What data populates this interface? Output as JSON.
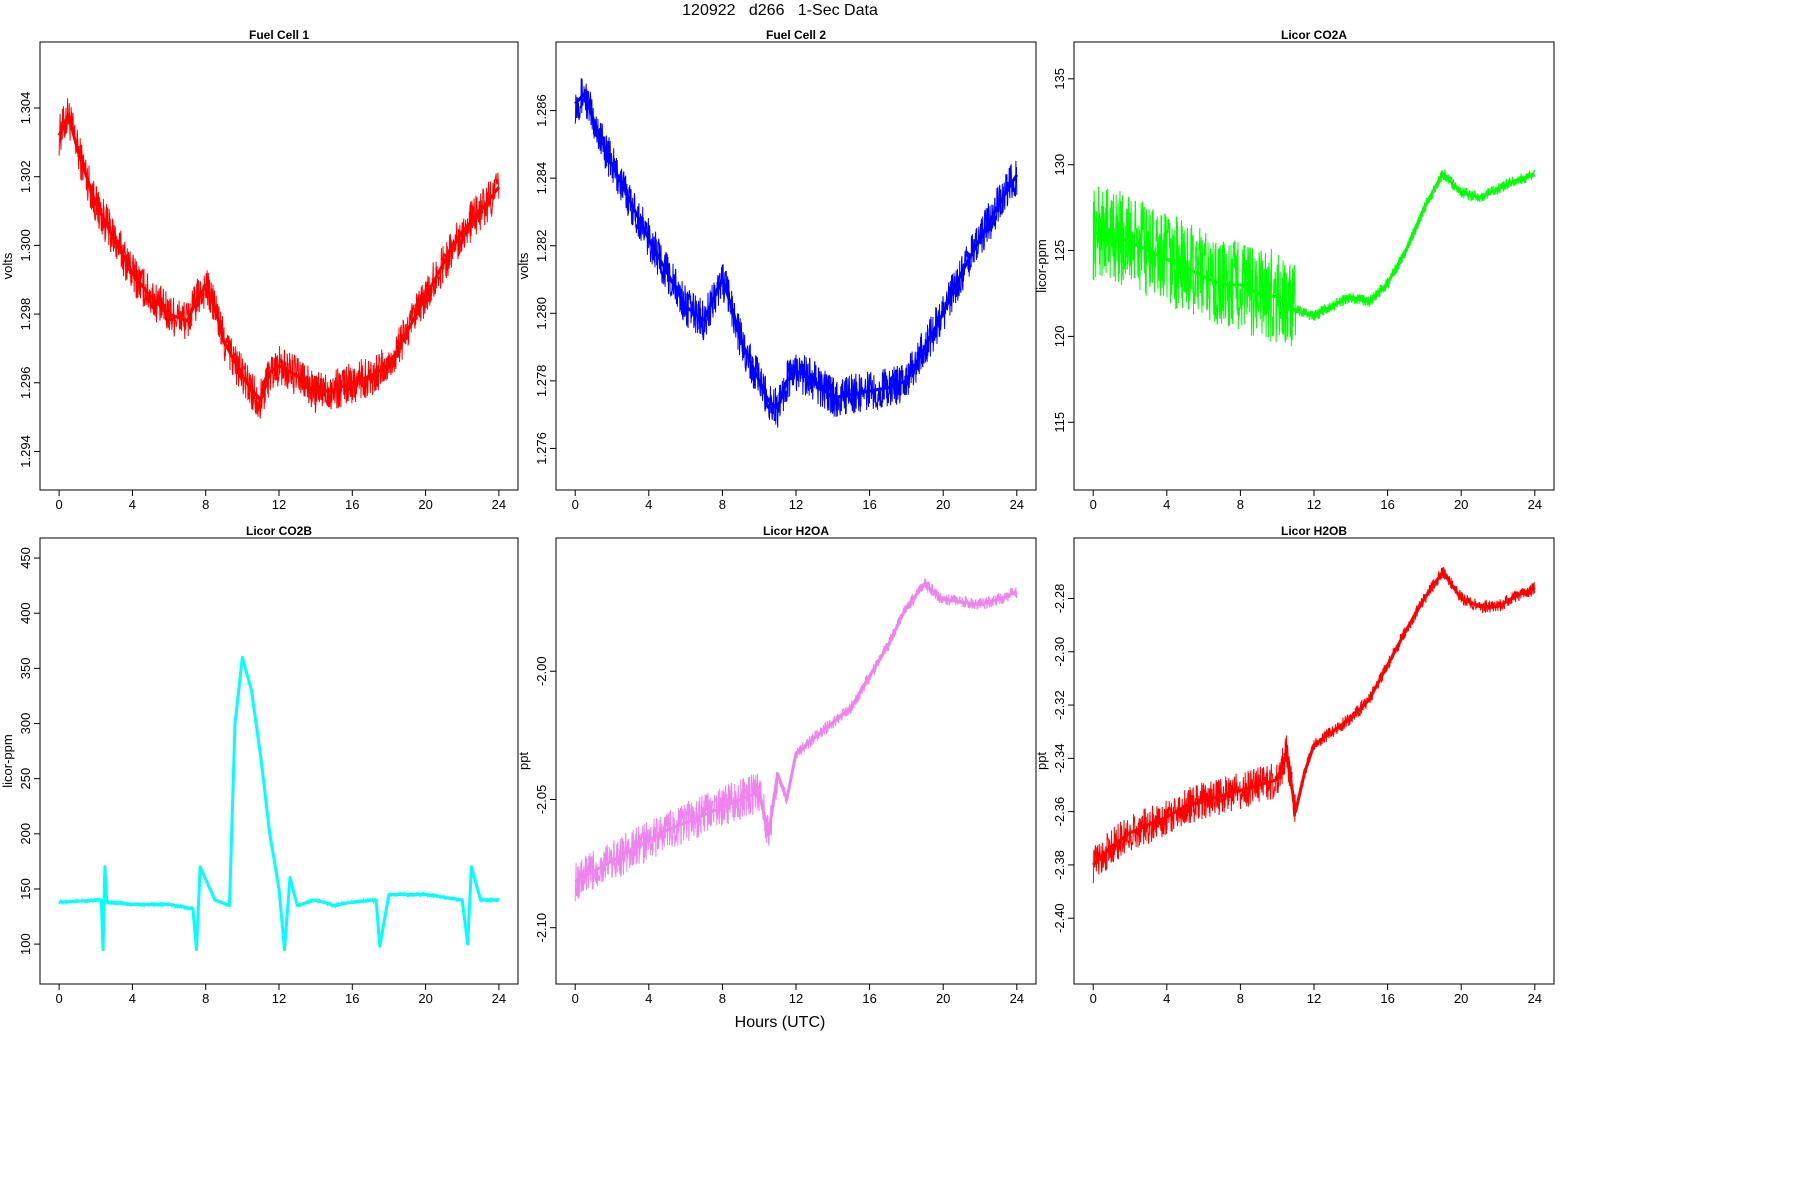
{
  "figure": {
    "title": "120922   d266   1-Sec Data",
    "xlabel": "Hours (UTC)"
  },
  "chart_data": [
    {
      "type": "line",
      "title": "Fuel Cell 1",
      "ylabel": "volts",
      "color": "#ff0000",
      "xlim": [
        0,
        24
      ],
      "ylim": [
        1.2934,
        1.3054
      ],
      "xticks": [
        "0",
        "4",
        "8",
        "12",
        "16",
        "20",
        "24"
      ],
      "yticks": [
        "1.294",
        "1.296",
        "1.298",
        "1.300",
        "1.302",
        "1.304"
      ],
      "noise": 0.0012,
      "x": [
        0,
        0.5,
        1,
        2,
        3,
        4,
        5,
        6,
        7,
        7.5,
        8,
        8.5,
        9,
        10,
        10.5,
        11,
        11.5,
        12,
        13,
        14,
        15,
        16,
        17,
        18,
        19,
        20,
        21,
        22,
        23,
        24
      ],
      "y": [
        1.3032,
        1.3038,
        1.3028,
        1.3012,
        1.3002,
        1.2992,
        1.2985,
        1.298,
        1.2978,
        1.2984,
        1.2988,
        1.2982,
        1.2972,
        1.2962,
        1.2958,
        1.2955,
        1.2963,
        1.2965,
        1.2962,
        1.2957,
        1.2958,
        1.296,
        1.2962,
        1.2965,
        1.2975,
        1.2985,
        1.2995,
        1.3004,
        1.301,
        1.3017
      ]
    },
    {
      "type": "line",
      "title": "Fuel Cell 2",
      "ylabel": "volts",
      "color": "#0000ff",
      "xlim": [
        0,
        24
      ],
      "ylim": [
        1.2753,
        1.2875
      ],
      "xticks": [
        "0",
        "4",
        "8",
        "12",
        "16",
        "20",
        "24"
      ],
      "yticks": [
        "1.276",
        "1.278",
        "1.280",
        "1.282",
        "1.284",
        "1.286"
      ],
      "noise": 0.0012,
      "x": [
        0,
        0.5,
        1,
        2,
        3,
        4,
        5,
        6,
        7,
        7.5,
        8,
        8.5,
        9,
        10,
        10.5,
        11,
        11.5,
        12,
        13,
        14,
        15,
        16,
        17,
        18,
        19,
        20,
        21,
        22,
        23,
        24
      ],
      "y": [
        1.2862,
        1.2865,
        1.2857,
        1.2844,
        1.2833,
        1.2822,
        1.2812,
        1.2802,
        1.2798,
        1.2804,
        1.281,
        1.2802,
        1.2792,
        1.278,
        1.2774,
        1.2772,
        1.278,
        1.2783,
        1.278,
        1.2775,
        1.2776,
        1.2777,
        1.2778,
        1.278,
        1.279,
        1.28,
        1.2812,
        1.2822,
        1.2832,
        1.2841
      ]
    },
    {
      "type": "line",
      "title": "Licor CO2A",
      "ylabel": "licor-ppm",
      "color": "#00ff00",
      "xlim": [
        0,
        24
      ],
      "ylim": [
        112.1,
        136.1
      ],
      "xticks": [
        "0",
        "4",
        "8",
        "12",
        "16",
        "20",
        "24"
      ],
      "yticks": [
        "115",
        "120",
        "125",
        "130",
        "135"
      ],
      "noise": 5.5,
      "x": [
        0,
        1,
        2,
        3,
        4,
        5,
        6,
        7,
        8,
        9,
        10,
        11,
        12,
        13,
        14,
        15,
        16,
        17,
        18,
        19,
        20,
        21,
        22,
        23,
        24
      ],
      "y": [
        126,
        126,
        125.5,
        125,
        124.5,
        124,
        123.5,
        123,
        123,
        122.5,
        122.3,
        121.5,
        121.2,
        121.8,
        122.3,
        122,
        123.1,
        125,
        127.5,
        129.5,
        128.4,
        128.1,
        128.6,
        129.1,
        129.4
      ]
    },
    {
      "type": "line",
      "title": "Licor CO2B",
      "ylabel": "licor-ppm",
      "color": "#00ffff",
      "xlim": [
        0,
        24
      ],
      "ylim": [
        80,
        452
      ],
      "xticks": [
        "0",
        "4",
        "8",
        "12",
        "16",
        "20",
        "24"
      ],
      "yticks": [
        "100",
        "150",
        "200",
        "250",
        "300",
        "350",
        "400",
        "450"
      ],
      "noise": 4,
      "x": [
        0,
        2.3,
        2.4,
        2.5,
        2.6,
        4,
        6,
        7.3,
        7.5,
        7.7,
        8.5,
        9.3,
        9.6,
        10,
        10.5,
        11,
        11.5,
        12,
        12.3,
        12.6,
        13,
        14,
        15,
        16,
        17.3,
        17.5,
        18,
        20,
        22,
        22.3,
        22.5,
        23,
        24
      ],
      "y": [
        138,
        140,
        95,
        170,
        138,
        136,
        136,
        132,
        95,
        170,
        140,
        135,
        300,
        360,
        330,
        270,
        200,
        150,
        95,
        160,
        135,
        140,
        135,
        138,
        140,
        98,
        145,
        145,
        140,
        100,
        170,
        140,
        140
      ]
    },
    {
      "type": "line",
      "title": "Licor H2OA",
      "ylabel": "ppt",
      "color": "#ee82ee",
      "xlim": [
        0,
        24
      ],
      "ylim": [
        -2.115,
        -1.955
      ],
      "xticks": [
        "0",
        "4",
        "8",
        "12",
        "16",
        "20",
        "24"
      ],
      "yticks": [
        "-2.10",
        "-2.05",
        "-2.00"
      ],
      "noise": 0.016,
      "x": [
        0,
        1,
        2,
        3,
        4,
        5,
        6,
        7,
        8,
        9,
        10,
        10.5,
        11,
        11.5,
        12,
        13,
        14,
        15,
        16,
        17,
        18,
        19,
        20,
        21,
        22,
        23,
        24
      ],
      "y": [
        -2.082,
        -2.078,
        -2.074,
        -2.07,
        -2.066,
        -2.062,
        -2.059,
        -2.056,
        -2.053,
        -2.05,
        -2.047,
        -2.064,
        -2.04,
        -2.05,
        -2.032,
        -2.026,
        -2.02,
        -2.014,
        -2.002,
        -1.99,
        -1.975,
        -1.966,
        -1.972,
        -1.973,
        -1.974,
        -1.972,
        -1.969
      ]
    },
    {
      "type": "line",
      "title": "Licor H2OB",
      "ylabel": "ppt",
      "color": "#ff0000",
      "xlim": [
        0,
        24
      ],
      "ylim": [
        -2.418,
        -2.264
      ],
      "xticks": [
        "0",
        "4",
        "8",
        "12",
        "16",
        "20",
        "24"
      ],
      "yticks": [
        "-2.40",
        "-2.38",
        "-2.36",
        "-2.34",
        "-2.32",
        "-2.30",
        "-2.28"
      ],
      "noise": 0.014,
      "x": [
        0,
        1,
        2,
        3,
        4,
        5,
        6,
        7,
        8,
        9,
        10,
        10.5,
        11,
        11.5,
        12,
        13,
        14,
        15,
        16,
        17,
        18,
        19,
        20,
        21,
        22,
        23,
        24
      ],
      "y": [
        -2.38,
        -2.373,
        -2.368,
        -2.365,
        -2.362,
        -2.358,
        -2.356,
        -2.354,
        -2.352,
        -2.35,
        -2.348,
        -2.338,
        -2.36,
        -2.345,
        -2.335,
        -2.33,
        -2.325,
        -2.318,
        -2.305,
        -2.292,
        -2.28,
        -2.27,
        -2.28,
        -2.283,
        -2.283,
        -2.279,
        -2.276
      ]
    }
  ]
}
